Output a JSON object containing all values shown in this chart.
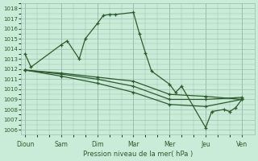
{
  "xlabel": "Pression niveau de la mer( hPa )",
  "day_labels": [
    "Dioun",
    "Sam",
    "Dim",
    "Mar",
    "Mer",
    "Jeu",
    "Ven"
  ],
  "day_positions": [
    0,
    48,
    96,
    144,
    192,
    240,
    288
  ],
  "xlim": [
    -5,
    305
  ],
  "ylim": [
    1005.5,
    1018.5
  ],
  "yticks": [
    1006,
    1007,
    1008,
    1009,
    1010,
    1011,
    1012,
    1013,
    1014,
    1015,
    1016,
    1017,
    1018
  ],
  "line1_x": [
    0,
    8,
    48,
    56,
    72,
    80,
    96,
    104,
    112,
    120,
    144,
    152,
    160,
    168,
    192,
    200,
    208,
    240,
    248,
    264,
    272,
    280,
    288
  ],
  "line1_y": [
    1013.5,
    1012.2,
    1014.4,
    1014.8,
    1013.0,
    1015.0,
    1016.5,
    1017.3,
    1017.4,
    1017.4,
    1017.6,
    1015.5,
    1013.6,
    1011.8,
    1010.5,
    1009.7,
    1010.3,
    1006.2,
    1007.8,
    1008.0,
    1007.8,
    1008.2,
    1009.0
  ],
  "line2_x": [
    0,
    48,
    96,
    144,
    192,
    240,
    288
  ],
  "line2_y": [
    1011.9,
    1011.6,
    1011.2,
    1010.8,
    1009.5,
    1009.3,
    1009.0
  ],
  "line3_x": [
    0,
    48,
    96,
    144,
    192,
    240,
    288
  ],
  "line3_y": [
    1011.9,
    1011.5,
    1011.0,
    1010.3,
    1009.0,
    1009.0,
    1009.2
  ],
  "line4_x": [
    0,
    48,
    96,
    144,
    192,
    240,
    288
  ],
  "line4_y": [
    1011.9,
    1011.3,
    1010.6,
    1009.7,
    1008.5,
    1008.3,
    1009.0
  ],
  "line_color": "#2d5a2d",
  "bg_color": "#c8ecd8",
  "grid_color": "#9dbdad",
  "marker": "+"
}
